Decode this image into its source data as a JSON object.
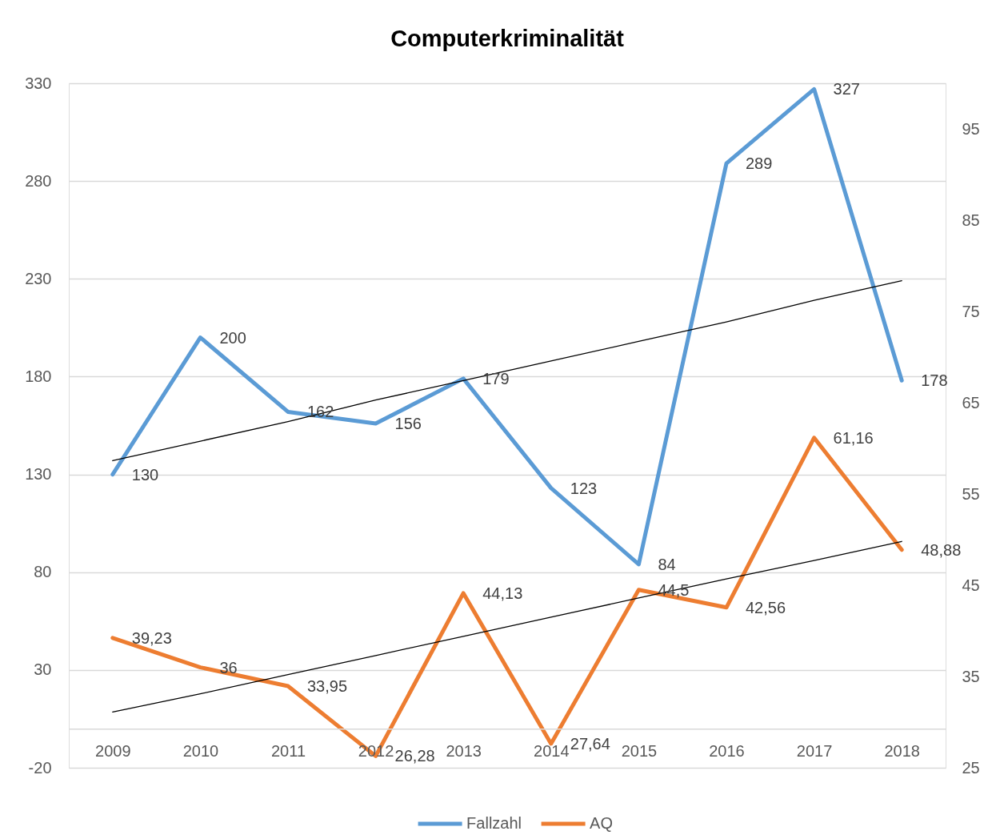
{
  "chart_data": {
    "type": "line",
    "title": "Computerkriminalität",
    "categories": [
      "2009",
      "2010",
      "2011",
      "2012",
      "2013",
      "2014",
      "2015",
      "2016",
      "2017",
      "2018"
    ],
    "series": [
      {
        "name": "Fallzahl",
        "color": "#5b9bd5",
        "values": [
          130,
          200,
          162,
          156,
          179,
          123,
          84,
          289,
          327,
          178
        ],
        "value_labels": [
          "130",
          "200",
          "162",
          "156",
          "179",
          "123",
          "84",
          "289",
          "327",
          "178"
        ]
      },
      {
        "name": "AQ",
        "color": "#ed7d31",
        "axis": "y2",
        "values": [
          39.23,
          36,
          33.95,
          26.28,
          44.13,
          27.64,
          44.5,
          42.56,
          61.16,
          48.88
        ],
        "value_labels": [
          "39,23",
          "36",
          "33,95",
          "26,28",
          "44,13",
          "27,64",
          "44,5",
          "42,56",
          "61,16",
          "48,88"
        ]
      },
      {
        "type": "line",
        "color": "#000000",
        "values": [
          137,
          147,
          157,
          168,
          178,
          188,
          198,
          208,
          219,
          229
        ]
      },
      {
        "type": "line",
        "color": "#000000",
        "axis": "y2",
        "values": [
          31.1,
          33.1,
          35.2,
          37.3,
          39.4,
          41.5,
          43.6,
          45.7,
          47.7,
          49.8
        ]
      }
    ],
    "ylim": [
      -20,
      330
    ],
    "yticks": [
      -20,
      30,
      80,
      130,
      180,
      230,
      280,
      330
    ],
    "y2lim": [
      25,
      100
    ],
    "y2ticks": [
      25,
      35,
      45,
      55,
      65,
      75,
      85,
      95
    ],
    "grid": "y",
    "legend": "bottom"
  }
}
